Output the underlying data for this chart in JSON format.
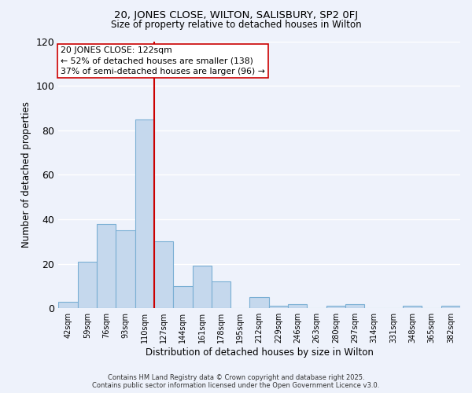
{
  "title": "20, JONES CLOSE, WILTON, SALISBURY, SP2 0FJ",
  "subtitle": "Size of property relative to detached houses in Wilton",
  "xlabel": "Distribution of detached houses by size in Wilton",
  "ylabel": "Number of detached properties",
  "bar_color": "#c5d8ed",
  "bar_edge_color": "#7aafd4",
  "background_color": "#eef2fb",
  "grid_color": "#ffffff",
  "bin_labels": [
    "42sqm",
    "59sqm",
    "76sqm",
    "93sqm",
    "110sqm",
    "127sqm",
    "144sqm",
    "161sqm",
    "178sqm",
    "195sqm",
    "212sqm",
    "229sqm",
    "246sqm",
    "263sqm",
    "280sqm",
    "297sqm",
    "314sqm",
    "331sqm",
    "348sqm",
    "365sqm",
    "382sqm"
  ],
  "bar_heights": [
    3,
    21,
    38,
    35,
    85,
    30,
    10,
    19,
    12,
    0,
    5,
    1,
    2,
    0,
    1,
    2,
    0,
    0,
    1,
    0,
    1
  ],
  "property_line_color": "#cc0000",
  "annotation_title": "20 JONES CLOSE: 122sqm",
  "annotation_line1": "← 52% of detached houses are smaller (138)",
  "annotation_line2": "37% of semi-detached houses are larger (96) →",
  "ylim": [
    0,
    120
  ],
  "yticks": [
    0,
    20,
    40,
    60,
    80,
    100,
    120
  ],
  "footer_line1": "Contains HM Land Registry data © Crown copyright and database right 2025.",
  "footer_line2": "Contains public sector information licensed under the Open Government Licence v3.0."
}
